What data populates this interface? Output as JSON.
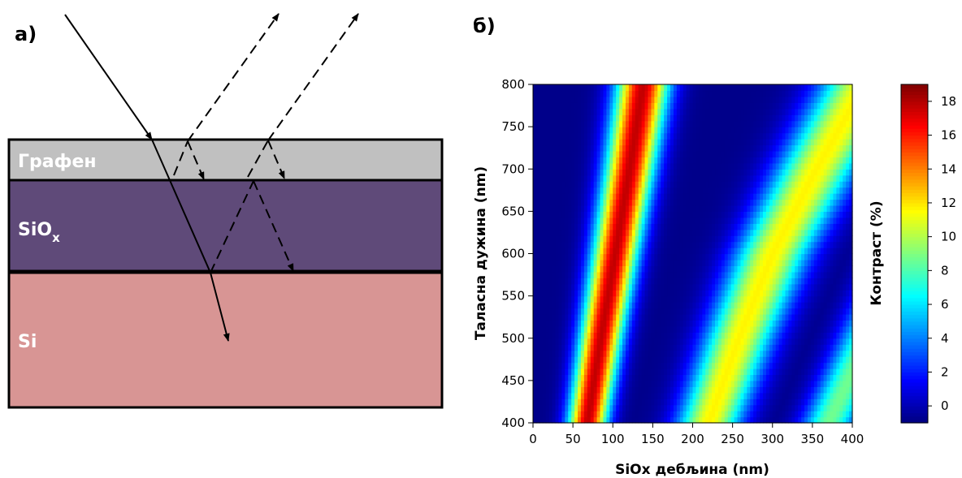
{
  "diagram": {
    "panel_label": "а)",
    "layers": [
      {
        "name": "graphene",
        "label": "Графен",
        "color": "#c0c0c0"
      },
      {
        "name": "siox",
        "label": "SiO",
        "subscript": "x",
        "color": "#5f4a79"
      },
      {
        "name": "si",
        "label": "Si",
        "color": "#d89594"
      }
    ]
  },
  "chart_panel_label": "б)",
  "chart_data": {
    "type": "heatmap",
    "xlabel": "SiOx дебљина (nm)",
    "ylabel": "Таласна дужина (nm)",
    "colorbar_label": "Контраст (%)",
    "xlim": [
      0,
      400
    ],
    "ylim": [
      400,
      800
    ],
    "x_ticks": [
      0,
      50,
      100,
      150,
      200,
      250,
      300,
      350,
      400
    ],
    "y_ticks": [
      400,
      450,
      500,
      550,
      600,
      650,
      700,
      750,
      800
    ],
    "colorbar_range": [
      -1,
      19
    ],
    "colorbar_ticks": [
      0,
      2,
      4,
      6,
      8,
      10,
      12,
      14,
      16,
      18
    ],
    "colormap": "jet",
    "bands": [
      {
        "name": "first-order maximum",
        "peak_contrast": 18.5,
        "center_x_at_wavelength": [
          [
            400,
            68
          ],
          [
            500,
            85
          ],
          [
            600,
            103
          ],
          [
            700,
            121
          ],
          [
            800,
            138
          ]
        ]
      },
      {
        "name": "second-order maximum",
        "peak_contrast": 12.5,
        "center_x_at_wavelength": [
          [
            400,
            220
          ],
          [
            500,
            258
          ],
          [
            600,
            300
          ],
          [
            700,
            355
          ],
          [
            750,
            385
          ]
        ]
      },
      {
        "name": "third-order maximum",
        "peak_contrast": 9.5,
        "center_x_at_wavelength": [
          [
            400,
            370
          ],
          [
            450,
            395
          ]
        ]
      }
    ]
  }
}
